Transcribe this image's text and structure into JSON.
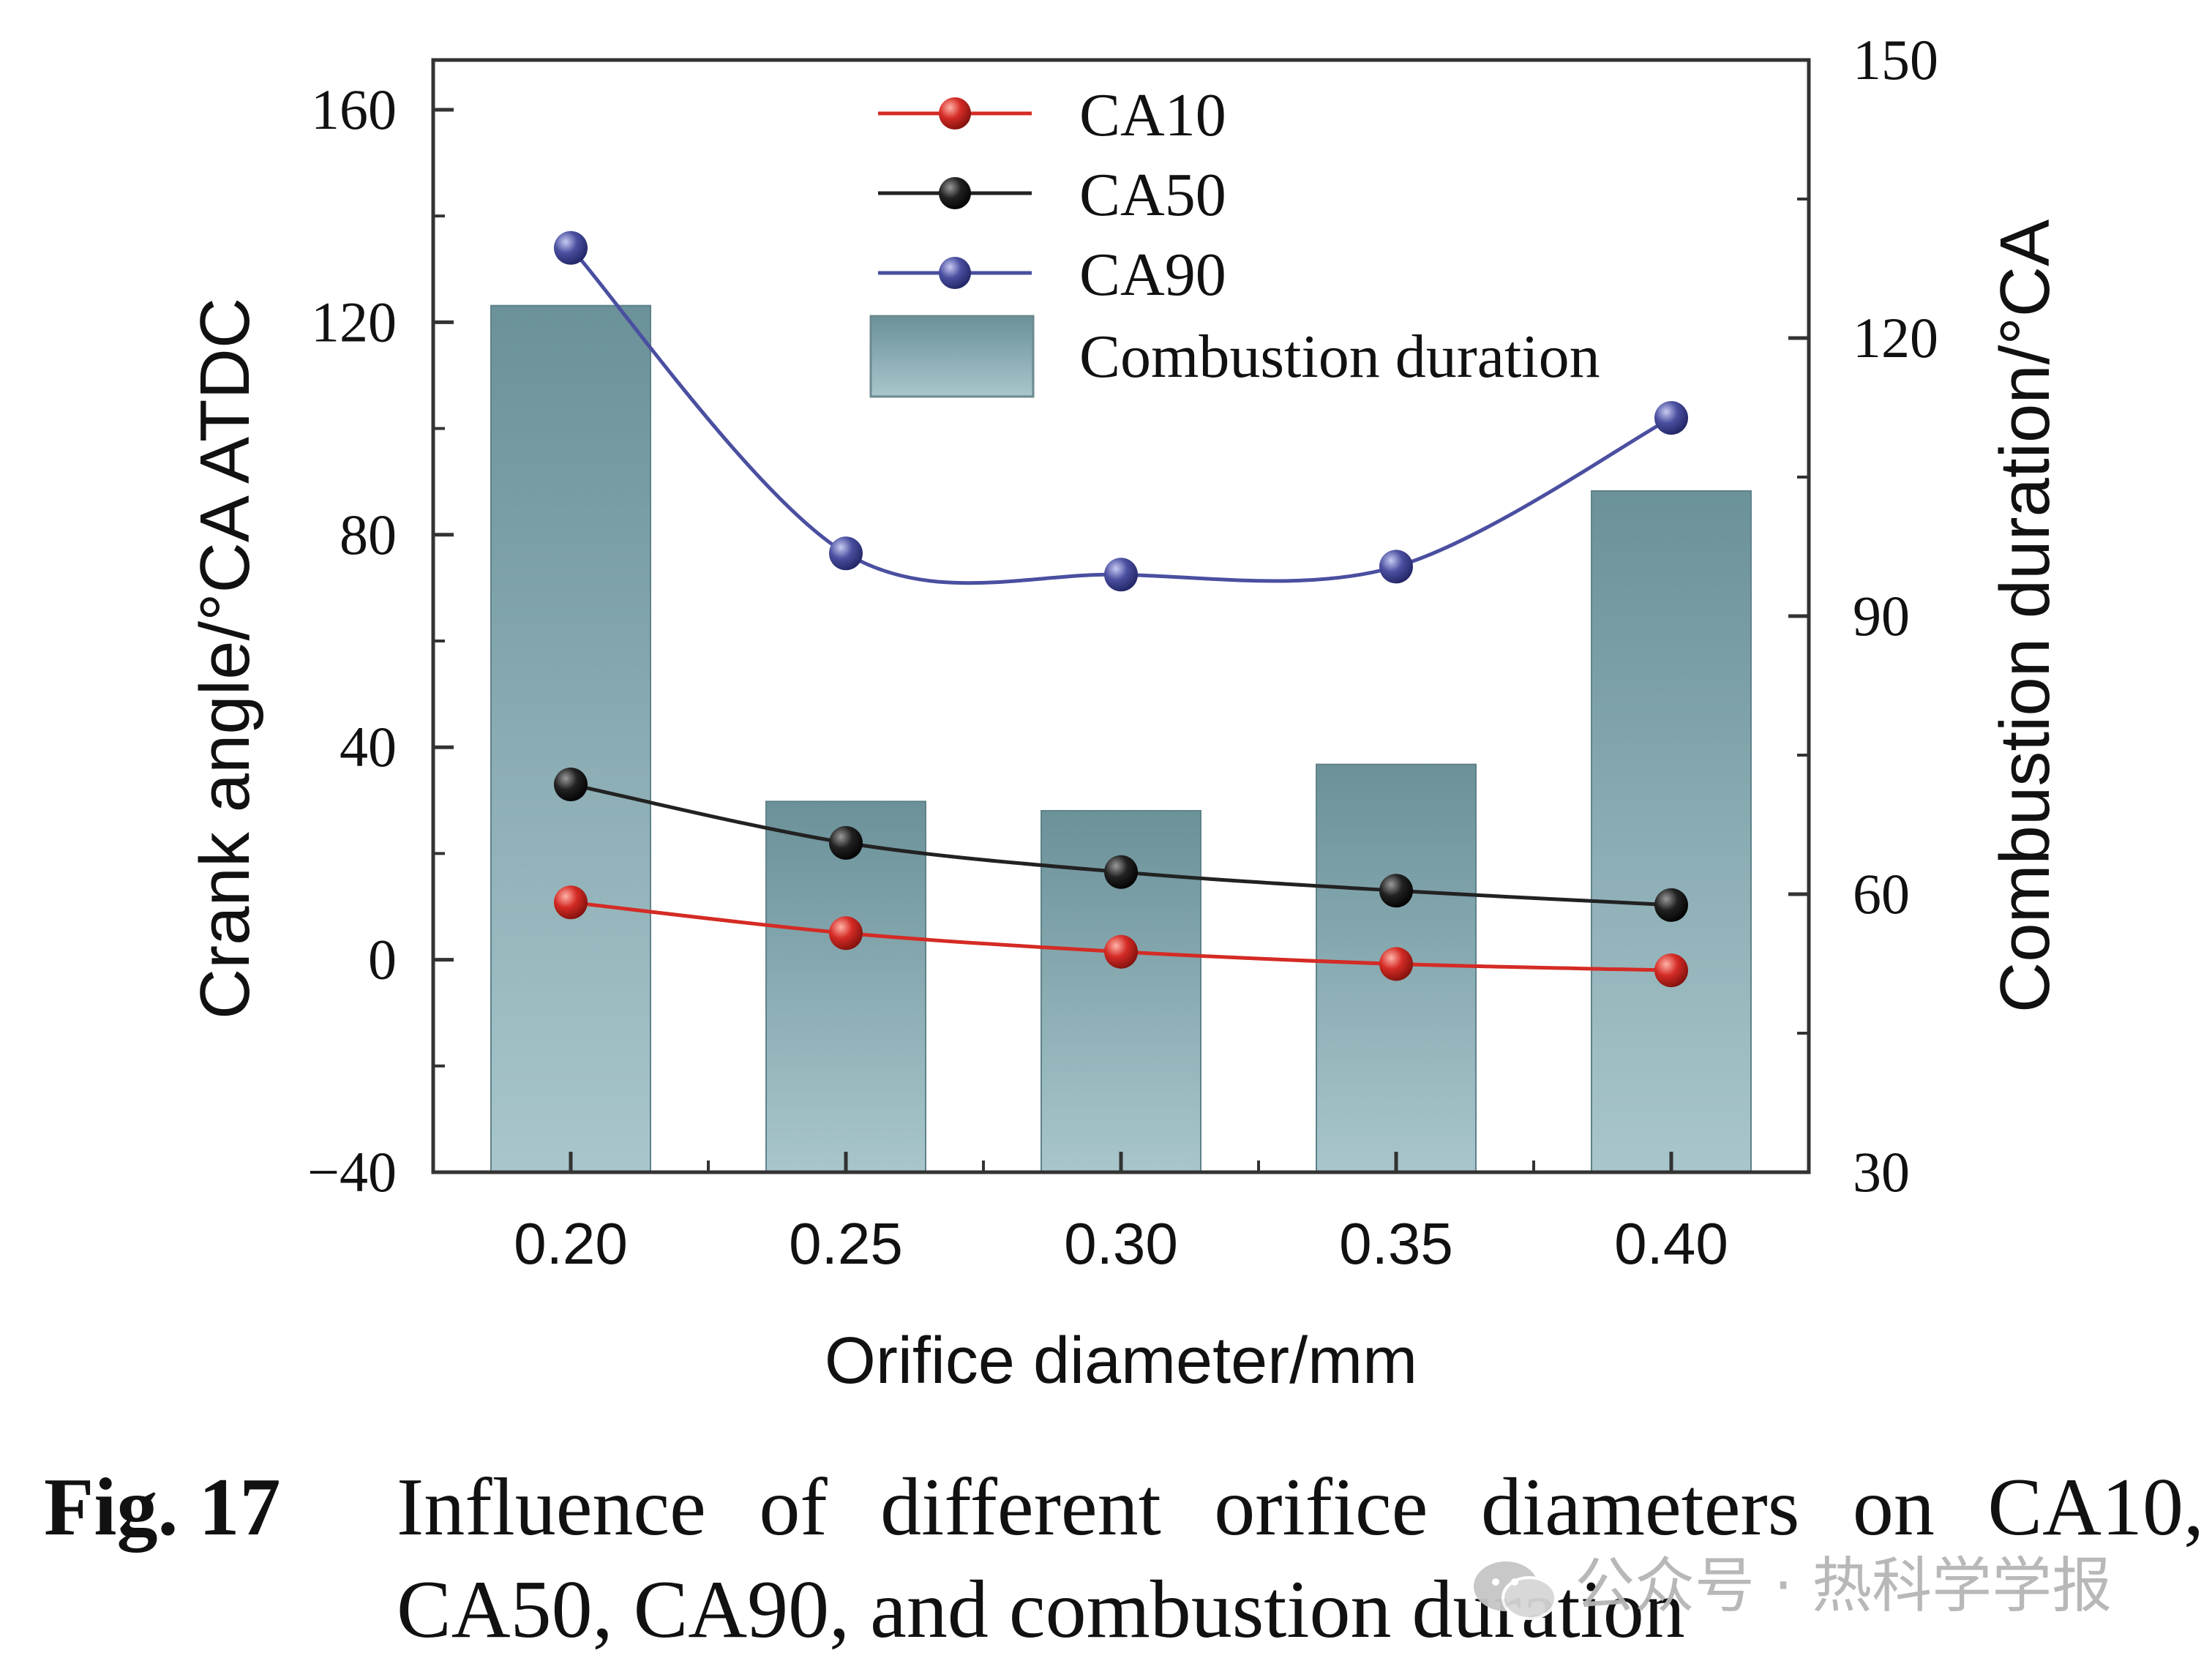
{
  "chart_data": {
    "type": "bar+line",
    "xlabel": "Orifice diameter/mm",
    "ylabel_left": "Crank angle/°CA ATDC",
    "ylabel_right": "Combustion duration/°CA",
    "categories": [
      "0.20",
      "0.25",
      "0.30",
      "0.35",
      "0.40"
    ],
    "ylim_left": [
      -40,
      160
    ],
    "yticks_left": [
      "−40",
      "0",
      "40",
      "80",
      "120",
      "160"
    ],
    "ylim_right": [
      30,
      150
    ],
    "yticks_right": [
      "30",
      "60",
      "90",
      "120",
      "150"
    ],
    "legend_position": "top-center",
    "bars": {
      "name": "Combustion duration",
      "axis": "right",
      "values": [
        123.5,
        70.0,
        69.0,
        74.0,
        103.5
      ],
      "color_top": "#6b9199",
      "color_bottom": "#a8c6cc"
    },
    "series": [
      {
        "name": "CA10",
        "axis": "left",
        "color": "#d42b25",
        "values": [
          10.8,
          5.0,
          1.5,
          -0.8,
          -2.0
        ]
      },
      {
        "name": "CA50",
        "axis": "left",
        "color": "#222222",
        "values": [
          33.0,
          22.0,
          16.5,
          13.0,
          10.3
        ]
      },
      {
        "name": "CA90",
        "axis": "left",
        "color": "#4a4fa0",
        "values": [
          134.0,
          76.5,
          72.5,
          74.0,
          102.0
        ]
      }
    ]
  },
  "caption": {
    "label": "Fig.  17",
    "line1": "Influence of different orifice diameters on CA10,",
    "line2": "CA50, CA90, and combustion duration"
  },
  "watermark": {
    "text": "公众号 · 热科学学报",
    "icon": "wechat-icon"
  }
}
